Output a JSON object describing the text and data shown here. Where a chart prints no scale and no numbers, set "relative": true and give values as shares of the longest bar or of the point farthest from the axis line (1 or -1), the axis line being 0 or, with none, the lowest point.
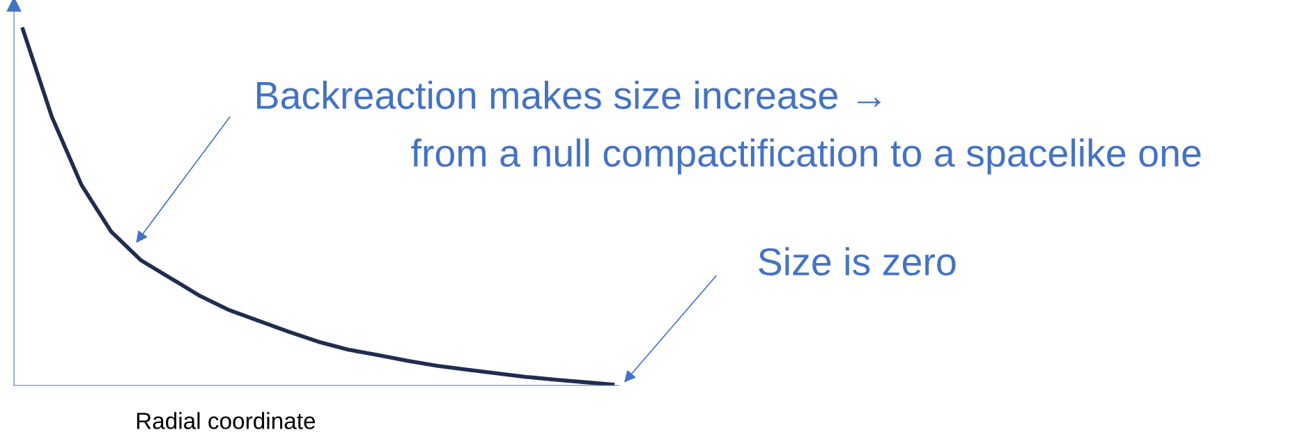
{
  "chart_data": {
    "type": "line",
    "relative": true,
    "xlabel": "Radial coordinate",
    "categories": [
      null,
      null,
      null,
      null,
      null,
      null,
      null,
      null,
      null,
      null,
      null,
      null,
      null,
      null,
      null,
      null,
      null,
      null,
      null,
      null,
      null
    ],
    "series": [
      {
        "color": "#1f2d50",
        "values": [
          1.0,
          0.75,
          0.56,
          0.43,
          0.35,
          0.3,
          0.25,
          0.21,
          0.18,
          0.15,
          0.122,
          0.1,
          0.085,
          0.069,
          0.055,
          0.044,
          0.034,
          0.024,
          0.016,
          0.009,
          0.002
        ]
      }
    ],
    "annotations": [
      "Backreaction makes size increase →",
      "from a null compactification to a spacelike one",
      "Size is zero"
    ],
    "grid": false,
    "legend": false,
    "marker": "none",
    "line_style": "solid"
  }
}
